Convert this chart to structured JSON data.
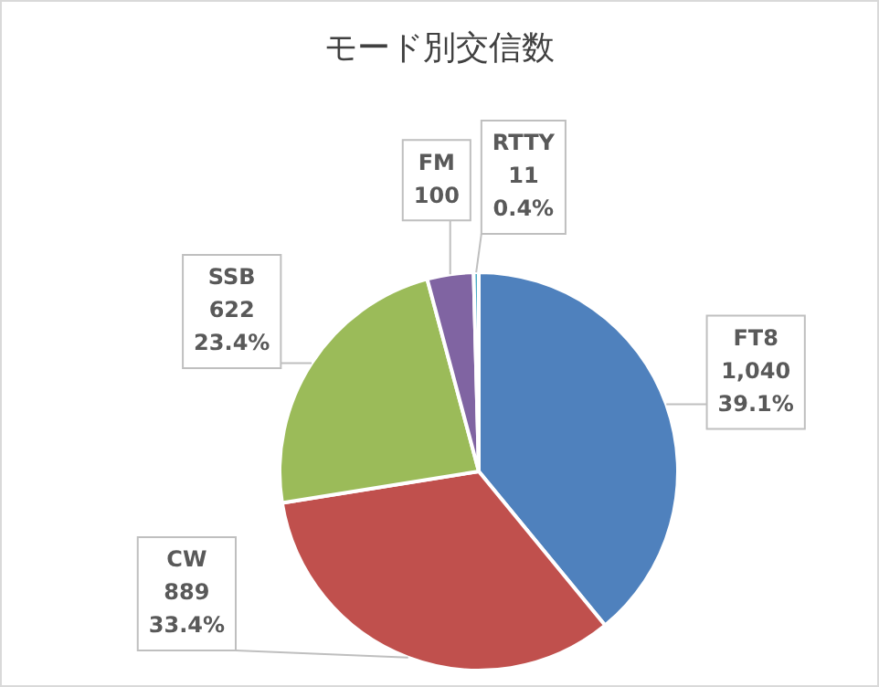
{
  "chart_data": {
    "type": "pie",
    "title": "モード別交信数",
    "categories": [
      "FT8",
      "CW",
      "SSB",
      "FM",
      "RTTY"
    ],
    "values": [
      1040,
      889,
      622,
      100,
      11
    ],
    "colors": [
      "#4f81bd",
      "#c0504d",
      "#9bbb59",
      "#8064a2",
      "#4bacc6"
    ],
    "value_labels": [
      "1,040\n39.1%",
      "889\n33.4%",
      "622\n23.4%",
      "100",
      "11\n0.4%"
    ],
    "legend": false
  }
}
